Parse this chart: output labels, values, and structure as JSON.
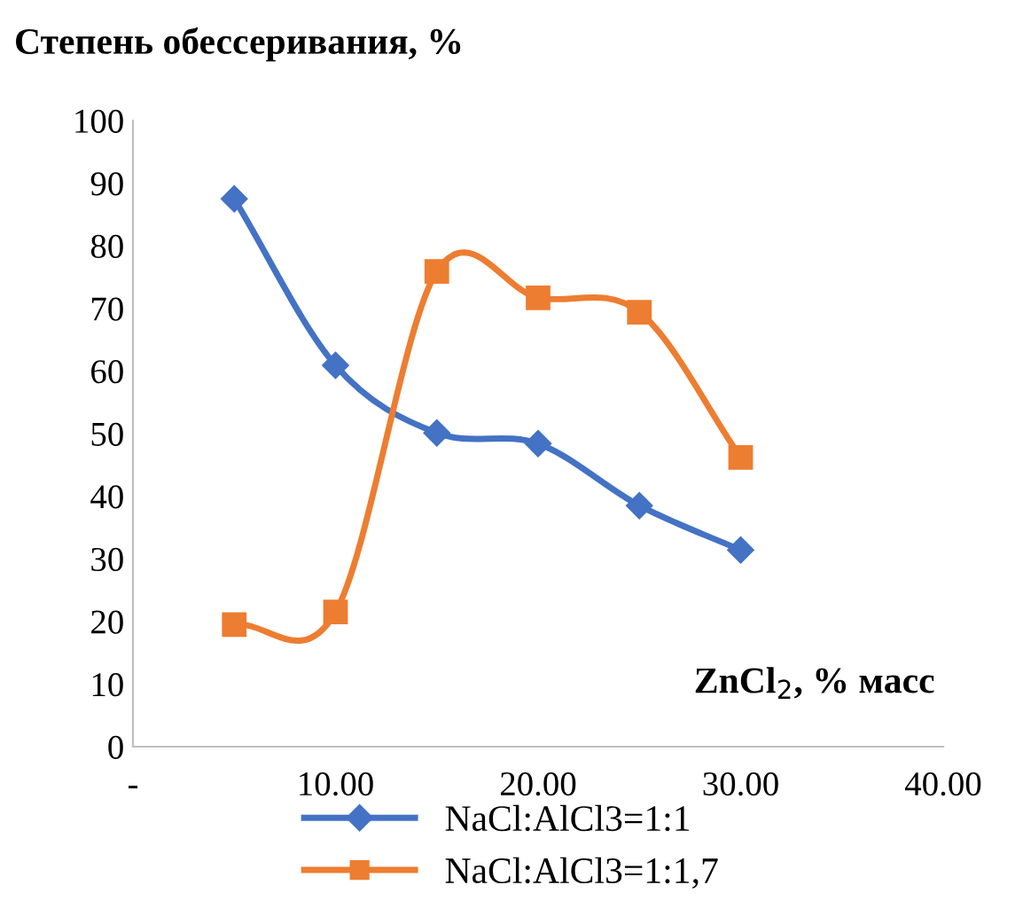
{
  "chart_data": {
    "type": "line",
    "ylabel": "Степень обессеривания, %",
    "xlabel": "ZnCl$_{2}$, % масс",
    "x": [
      5,
      10,
      15,
      20,
      25,
      30
    ],
    "series": [
      {
        "name": "NaCl:AlCl3=1:1",
        "color": "#4472c4",
        "marker": "diamond",
        "values": [
          87.5,
          60.9,
          50.1,
          48.4,
          38.5,
          31.4
        ]
      },
      {
        "name": "NaCl:AlCl3=1:1,7",
        "color": "#ed7d31",
        "marker": "square",
        "values": [
          19.5,
          21.5,
          75.9,
          71.7,
          69.4,
          46.2
        ]
      }
    ],
    "xlim": [
      0,
      40
    ],
    "xticks": [
      {
        "value": 0,
        "label": "-"
      },
      {
        "value": 10,
        "label": "10.00"
      },
      {
        "value": 20,
        "label": "20.00"
      },
      {
        "value": 30,
        "label": "30.00"
      },
      {
        "value": 40,
        "label": "40.00"
      }
    ],
    "ylim": [
      0,
      100
    ],
    "yticks": [
      0,
      10,
      20,
      30,
      40,
      50,
      60,
      70,
      80,
      90,
      100
    ],
    "grid": false,
    "legend": "bottom",
    "line_style": "solid"
  }
}
